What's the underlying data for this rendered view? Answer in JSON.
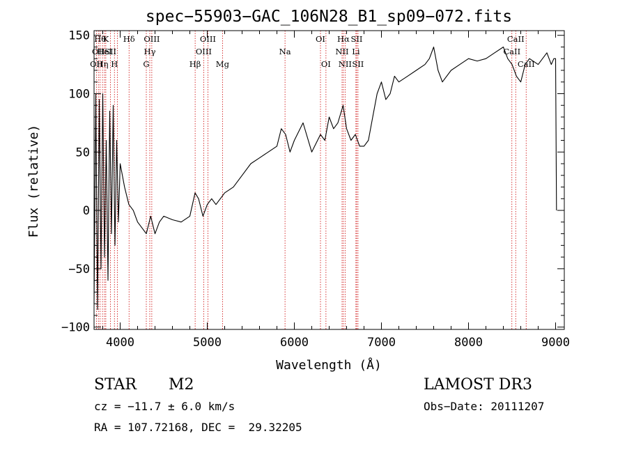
{
  "chart_data": {
    "type": "line",
    "title": "spec−55903−GAC_106N28_B1_sp09−072.fits",
    "xlabel": "Wavelength (Å)",
    "ylabel": "Flux (relative)",
    "xlim": [
      3700,
      9100
    ],
    "ylim": [
      -102,
      154
    ],
    "xticks": [
      4000,
      5000,
      6000,
      7000,
      8000,
      9000
    ],
    "yticks": [
      -100,
      -50,
      0,
      50,
      100,
      150
    ],
    "ytick_labels": [
      "−100",
      "−50",
      "0",
      "50",
      "100",
      "150"
    ],
    "grid": false,
    "series": [
      {
        "color": "#000000",
        "x": [
          3700,
          3720,
          3740,
          3760,
          3780,
          3800,
          3820,
          3840,
          3860,
          3880,
          3900,
          3920,
          3940,
          3960,
          3980,
          4000,
          4050,
          4100,
          4150,
          4200,
          4250,
          4300,
          4350,
          4400,
          4450,
          4500,
          4600,
          4700,
          4800,
          4860,
          4900,
          4950,
          5000,
          5050,
          5100,
          5200,
          5300,
          5400,
          5500,
          5600,
          5700,
          5800,
          5850,
          5900,
          5950,
          6000,
          6100,
          6200,
          6300,
          6350,
          6400,
          6450,
          6500,
          6560,
          6600,
          6650,
          6700,
          6750,
          6800,
          6850,
          6900,
          6950,
          7000,
          7050,
          7100,
          7150,
          7200,
          7300,
          7400,
          7500,
          7550,
          7600,
          7650,
          7700,
          7800,
          7900,
          8000,
          8100,
          8200,
          8300,
          8400,
          8450,
          8500,
          8550,
          8600,
          8650,
          8700,
          8800,
          8900,
          8950,
          8980,
          9000,
          9010
        ],
        "y": [
          -80,
          100,
          -85,
          95,
          -50,
          100,
          -40,
          60,
          -60,
          85,
          -20,
          90,
          -30,
          60,
          -10,
          40,
          20,
          5,
          0,
          -10,
          -15,
          -20,
          -5,
          -20,
          -10,
          -5,
          -8,
          -10,
          -5,
          15,
          10,
          -5,
          5,
          10,
          5,
          15,
          20,
          30,
          40,
          45,
          50,
          55,
          70,
          65,
          50,
          60,
          75,
          50,
          65,
          60,
          80,
          70,
          75,
          90,
          70,
          60,
          65,
          55,
          55,
          60,
          80,
          100,
          110,
          95,
          100,
          115,
          110,
          115,
          120,
          125,
          130,
          140,
          120,
          110,
          120,
          125,
          130,
          128,
          130,
          135,
          140,
          130,
          125,
          115,
          110,
          125,
          130,
          125,
          135,
          125,
          130,
          130,
          0
        ]
      }
    ],
    "line_markers": [
      {
        "wavelength": 3727,
        "label": "OII",
        "row": 2
      },
      {
        "wavelength": 3750,
        "label": "OII",
        "row": 1
      },
      {
        "wavelength": 3770,
        "label": "Hθ",
        "row": 0
      },
      {
        "wavelength": 3797,
        "label": "Hη",
        "row": 2
      },
      {
        "wavelength": 3820,
        "label": "HeI",
        "row": 1
      },
      {
        "wavelength": 3835,
        "label": "K",
        "row": 0
      },
      {
        "wavelength": 3889,
        "label": "SII",
        "row": 1
      },
      {
        "wavelength": 3934,
        "label": "H",
        "row": 2
      },
      {
        "wavelength": 3968,
        "label": "",
        "row": 0
      },
      {
        "wavelength": 4102,
        "label": "Hδ",
        "row": 0
      },
      {
        "wavelength": 4300,
        "label": "G",
        "row": 2
      },
      {
        "wavelength": 4340,
        "label": "Hγ",
        "row": 1
      },
      {
        "wavelength": 4363,
        "label": "OIII",
        "row": 0
      },
      {
        "wavelength": 4861,
        "label": "Hβ",
        "row": 2
      },
      {
        "wavelength": 4959,
        "label": "OIII",
        "row": 1
      },
      {
        "wavelength": 5007,
        "label": "OIII",
        "row": 0
      },
      {
        "wavelength": 5175,
        "label": "Mg",
        "row": 2
      },
      {
        "wavelength": 5893,
        "label": "Na",
        "row": 1
      },
      {
        "wavelength": 6300,
        "label": "OI",
        "row": 0
      },
      {
        "wavelength": 6363,
        "label": "OI",
        "row": 2
      },
      {
        "wavelength": 6548,
        "label": "NII",
        "row": 1
      },
      {
        "wavelength": 6563,
        "label": "Hα",
        "row": 0
      },
      {
        "wavelength": 6583,
        "label": "NII",
        "row": 2
      },
      {
        "wavelength": 6707,
        "label": "Li",
        "row": 1
      },
      {
        "wavelength": 6716,
        "label": "SII",
        "row": 0
      },
      {
        "wavelength": 6731,
        "label": "SII",
        "row": 2
      },
      {
        "wavelength": 8498,
        "label": "CaII",
        "row": 1
      },
      {
        "wavelength": 8542,
        "label": "CaII",
        "row": 0
      },
      {
        "wavelength": 8662,
        "label": "CaII",
        "row": 2
      }
    ],
    "line_marker_color": "#cc0000"
  },
  "info": {
    "class": "STAR",
    "subclass": "M2",
    "survey": "LAMOST DR3",
    "cz": "cz = −11.7 ± 6.0 km/s",
    "obs_date": "Obs−Date: 20111207",
    "coords": "RA = 107.72168, DEC =  29.32205"
  }
}
